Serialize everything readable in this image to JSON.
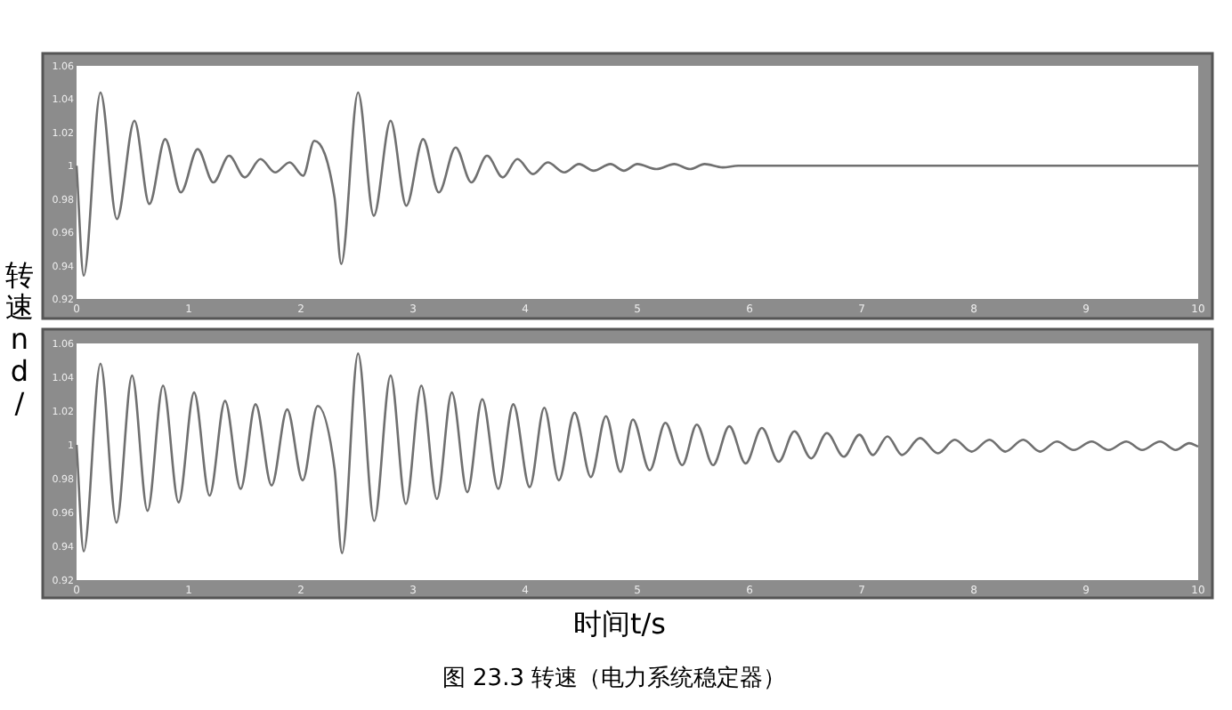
{
  "chart_data": [
    {
      "type": "line",
      "ylabel": "转速nd/",
      "color": "#707070",
      "xlim": [
        0,
        10
      ],
      "ylim": [
        0.92,
        1.06
      ],
      "xticks": [
        0,
        1,
        2,
        3,
        4,
        5,
        6,
        7,
        8,
        9,
        10
      ],
      "yticks": [
        0.92,
        0.94,
        0.96,
        0.98,
        1,
        1.02,
        1.04,
        1.06
      ],
      "x": [
        0,
        0.064,
        0.213,
        0.36,
        0.516,
        0.649,
        0.79,
        0.93,
        1.08,
        1.22,
        1.36,
        1.5,
        1.64,
        1.77,
        1.9,
        2.02,
        2.12,
        2.3,
        2.36,
        2.51,
        2.65,
        2.8,
        2.94,
        3.09,
        3.23,
        3.38,
        3.52,
        3.66,
        3.8,
        3.93,
        4.07,
        4.2,
        4.35,
        4.48,
        4.61,
        4.76,
        4.88,
        5.0,
        5.17,
        5.33,
        5.47,
        5.6,
        5.76,
        5.9,
        10
      ],
      "values": [
        1.0,
        0.934,
        1.044,
        0.968,
        1.027,
        0.977,
        1.016,
        0.984,
        1.01,
        0.99,
        1.006,
        0.993,
        1.004,
        0.996,
        1.002,
        0.994,
        1.015,
        0.981,
        0.941,
        1.044,
        0.97,
        1.027,
        0.976,
        1.016,
        0.984,
        1.011,
        0.99,
        1.006,
        0.993,
        1.004,
        0.995,
        1.002,
        0.996,
        1.001,
        0.997,
        1.001,
        0.997,
        1.001,
        0.998,
        1.001,
        0.998,
        1.001,
        0.999,
        1.0,
        1.0
      ]
    },
    {
      "type": "line",
      "xlabel": "时间t/s",
      "color": "#707070",
      "xlim": [
        0,
        10
      ],
      "ylim": [
        0.92,
        1.06
      ],
      "xticks": [
        0,
        1,
        2,
        3,
        4,
        5,
        6,
        7,
        8,
        9,
        10
      ],
      "yticks": [
        0.92,
        0.94,
        0.96,
        0.98,
        1,
        1.02,
        1.04,
        1.06
      ],
      "annotations": [
        "图 23.3  转速（电力系统稳定器）"
      ],
      "x": [
        0,
        0.064,
        0.213,
        0.356,
        0.495,
        0.633,
        0.771,
        0.91,
        1.048,
        1.186,
        1.324,
        1.463,
        1.596,
        1.739,
        1.878,
        2.016,
        2.149,
        2.3,
        2.367,
        2.51,
        2.654,
        2.8,
        2.936,
        3.074,
        3.213,
        3.346,
        3.484,
        3.617,
        3.76,
        3.894,
        4.04,
        4.17,
        4.3,
        4.44,
        4.585,
        4.72,
        4.85,
        4.96,
        5.11,
        5.25,
        5.4,
        5.53,
        5.675,
        5.82,
        5.965,
        6.11,
        6.26,
        6.4,
        6.55,
        6.69,
        6.84,
        6.98,
        7.1,
        7.23,
        7.36,
        7.52,
        7.68,
        7.83,
        7.98,
        8.14,
        8.28,
        8.44,
        8.59,
        8.74,
        8.89,
        9.05,
        9.2,
        9.36,
        9.5,
        9.66,
        9.8,
        9.92,
        10
      ],
      "values": [
        1.0,
        0.937,
        1.048,
        0.954,
        1.041,
        0.961,
        1.035,
        0.966,
        1.031,
        0.97,
        1.026,
        0.974,
        1.024,
        0.976,
        1.021,
        0.979,
        1.023,
        0.986,
        0.936,
        1.054,
        0.955,
        1.041,
        0.965,
        1.035,
        0.968,
        1.031,
        0.972,
        1.027,
        0.974,
        1.024,
        0.975,
        1.022,
        0.979,
        1.019,
        0.981,
        1.017,
        0.984,
        1.015,
        0.985,
        1.013,
        0.988,
        1.012,
        0.988,
        1.011,
        0.989,
        1.01,
        0.99,
        1.008,
        0.992,
        1.007,
        0.993,
        1.006,
        0.994,
        1.005,
        0.994,
        1.004,
        0.995,
        1.003,
        0.996,
        1.003,
        0.996,
        1.003,
        0.996,
        1.002,
        0.997,
        1.002,
        0.997,
        1.002,
        0.997,
        1.002,
        0.997,
        1.001,
        0.999
      ]
    }
  ]
}
